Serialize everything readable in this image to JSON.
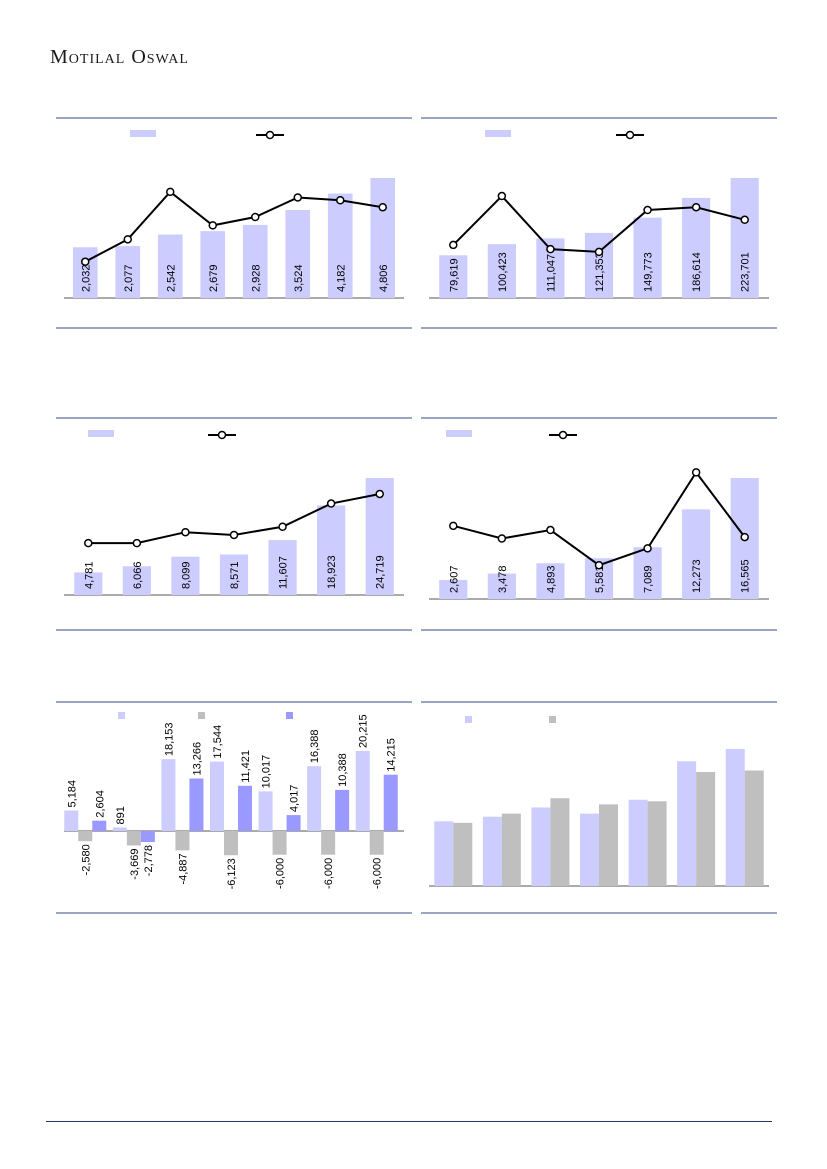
{
  "header": {
    "brand": "Motilal Oswal"
  },
  "colors": {
    "rule": "#3a4a8a",
    "bar": "#ccccff",
    "bar_dark": "#9999ff",
    "bar_gray": "#bfbfbf",
    "line": "#000000"
  },
  "chart_data": [
    {
      "type": "bar",
      "values": [
        2032,
        2077,
        2542,
        2679,
        2928,
        3524,
        4182,
        4806
      ],
      "labels": [
        "2,032",
        "2,077",
        "2,542",
        "2,679",
        "2,928",
        "3,524",
        "4,182",
        "4,806"
      ],
      "line_series": [
        0.26,
        0.42,
        0.76,
        0.52,
        0.58,
        0.72,
        0.7,
        0.65
      ],
      "legend": "top"
    },
    {
      "type": "bar",
      "values": [
        79619,
        100423,
        111047,
        121353,
        149773,
        186614,
        223701
      ],
      "labels": [
        "79,619",
        "100,423",
        "111,047",
        "121,353",
        "149,773",
        "186,614",
        "223,701"
      ],
      "line_series": [
        0.38,
        0.73,
        0.35,
        0.33,
        0.63,
        0.65,
        0.56
      ],
      "legend": "top"
    },
    {
      "type": "bar",
      "values": [
        4781,
        6066,
        8099,
        8571,
        11607,
        18923,
        24719
      ],
      "labels": [
        "4,781",
        "6,066",
        "8,099",
        "8,571",
        "11,607",
        "18,923",
        "24,719"
      ],
      "line_series": [
        0.38,
        0.38,
        0.46,
        0.44,
        0.5,
        0.67,
        0.74
      ],
      "legend": "top"
    },
    {
      "type": "bar",
      "values": [
        2607,
        3478,
        4893,
        5581,
        7089,
        12273,
        16565
      ],
      "labels": [
        "2,607",
        "3,478",
        "4,893",
        "5,581",
        "7,089",
        "12,273",
        "16,565"
      ],
      "line_series": [
        0.52,
        0.43,
        0.49,
        0.24,
        0.36,
        0.9,
        0.44
      ],
      "legend": "top"
    },
    {
      "type": "bar",
      "series": [
        {
          "values": [
            5184,
            891,
            18153,
            17544,
            10017,
            16388,
            20215
          ],
          "labels": [
            "5,184",
            "891",
            "18,153",
            "17,544",
            "10,017",
            "16,388",
            "20,215"
          ]
        },
        {
          "values": [
            -2580,
            -3669,
            -4887,
            -6123,
            -6000,
            -6000,
            -6000
          ],
          "labels": [
            "-2,580",
            "-3,669",
            "-4,887",
            "-6,123",
            "-6,000",
            "-6,000",
            "-6,000"
          ]
        },
        {
          "values": [
            2604,
            -2778,
            13266,
            11421,
            4017,
            10388,
            14215
          ],
          "labels": [
            "2,604",
            "-2,778",
            "13,266",
            "11,421",
            "4,017",
            "10,388",
            "14,215"
          ]
        }
      ],
      "legend": "top"
    },
    {
      "type": "bar",
      "series": [
        {
          "values": [
            0.42,
            0.45,
            0.51,
            0.47,
            0.56,
            0.81,
            0.89
          ]
        },
        {
          "values": [
            0.41,
            0.47,
            0.57,
            0.53,
            0.55,
            0.74,
            0.75
          ]
        }
      ],
      "legend": "top"
    }
  ]
}
